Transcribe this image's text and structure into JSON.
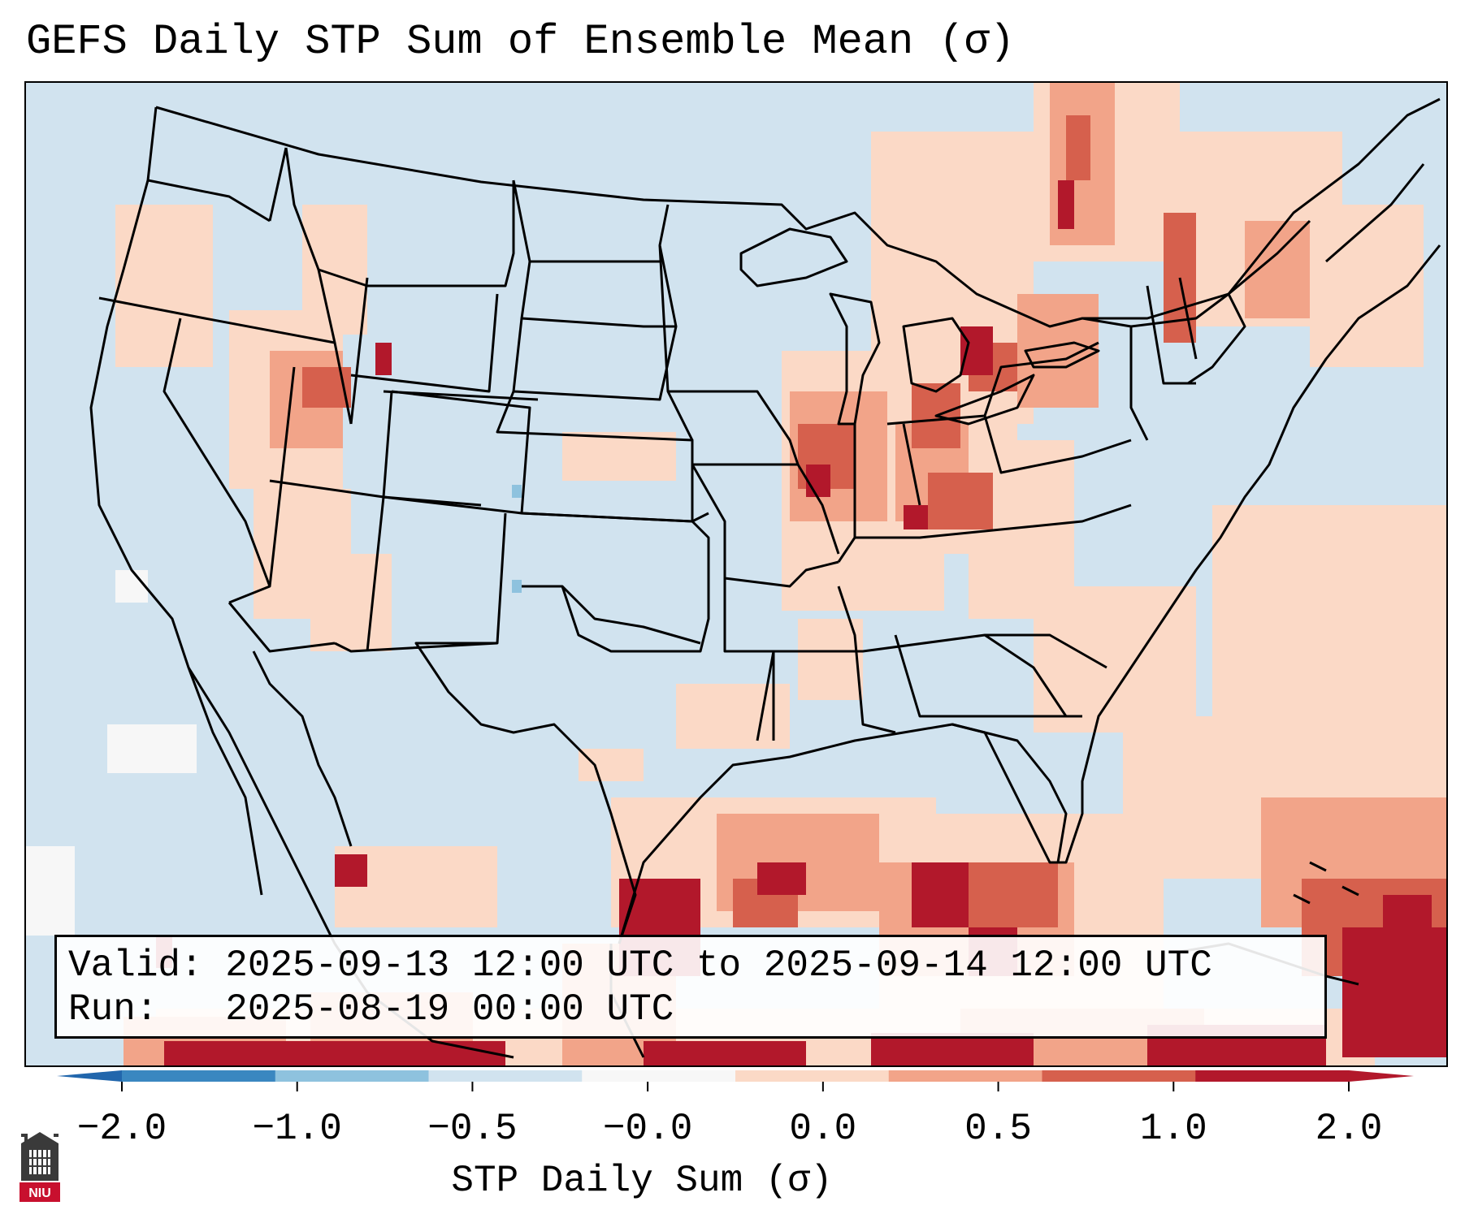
{
  "title": "GEFS Daily STP Sum of Ensemble Mean (σ)",
  "info": {
    "valid_line": "Valid: 2025-09-13 12:00 UTC to 2025-09-14 12:00 UTC",
    "run_line": "Run:   2025-08-19 00:00 UTC"
  },
  "colorbar": {
    "label": "STP Daily Sum (σ)",
    "ticks": [
      "−2.0",
      "−1.0",
      "−0.5",
      "−0.0",
      "0.0",
      "0.5",
      "1.0",
      "2.0"
    ],
    "bins": [
      {
        "name": "-2.0 to -1.0",
        "color": "#3a87c0"
      },
      {
        "name": "-1.0 to -0.5",
        "color": "#8ec2de"
      },
      {
        "name": "-0.5 to 0.0",
        "color": "#d1e3ef"
      },
      {
        "name": "~0",
        "color": "#f7f7f7"
      },
      {
        "name": "0.0 to 0.5",
        "color": "#fbd9c6"
      },
      {
        "name": "0.5 to 1.0",
        "color": "#f2a489"
      },
      {
        "name": "1.0 to 2.0",
        "color": "#d6604d"
      },
      {
        "name": ">2.0",
        "color": "#b2182b"
      }
    ],
    "extend_low_color": "#2166ac",
    "extend_high_color": "#b2182b"
  },
  "map": {
    "ocean_color": "#d1e3ef",
    "regions": [
      {
        "name": "great-lakes-midwest",
        "level": "1.0 to 2.0"
      },
      {
        "name": "gulf-coast-texas",
        "level": ">2.0"
      },
      {
        "name": "florida-caribbean",
        "level": ">2.0"
      },
      {
        "name": "pacific-northwest",
        "level": "0.5 to 1.0"
      },
      {
        "name": "northeast-canada",
        "level": "0.5 to 1.0"
      },
      {
        "name": "atlantic-offshore",
        "level": "0.0 to 0.5"
      },
      {
        "name": "colorado-negative",
        "level": "-1.0 to -0.5"
      }
    ]
  },
  "logo": {
    "text": "NIU"
  }
}
